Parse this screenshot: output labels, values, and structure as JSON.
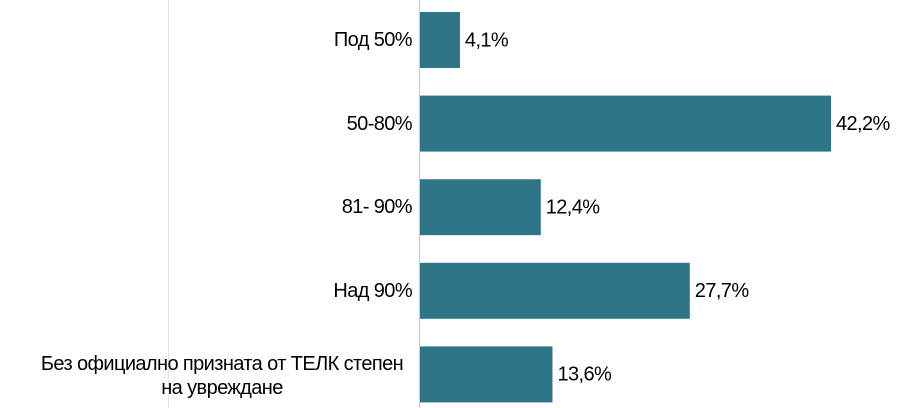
{
  "chart_data": {
    "type": "bar",
    "orientation": "horizontal",
    "categories": [
      "Под 50%",
      "50-80%",
      "81- 90%",
      "Над 90%",
      "Без официално призната от ТЕЛК степен на увреждане"
    ],
    "values": [
      4.1,
      42.2,
      12.4,
      27.7,
      13.6
    ],
    "value_labels": [
      "4,1%",
      "42,2%",
      "12,4%",
      "27,7%",
      "13,6%"
    ],
    "color": "#2e7587"
  }
}
